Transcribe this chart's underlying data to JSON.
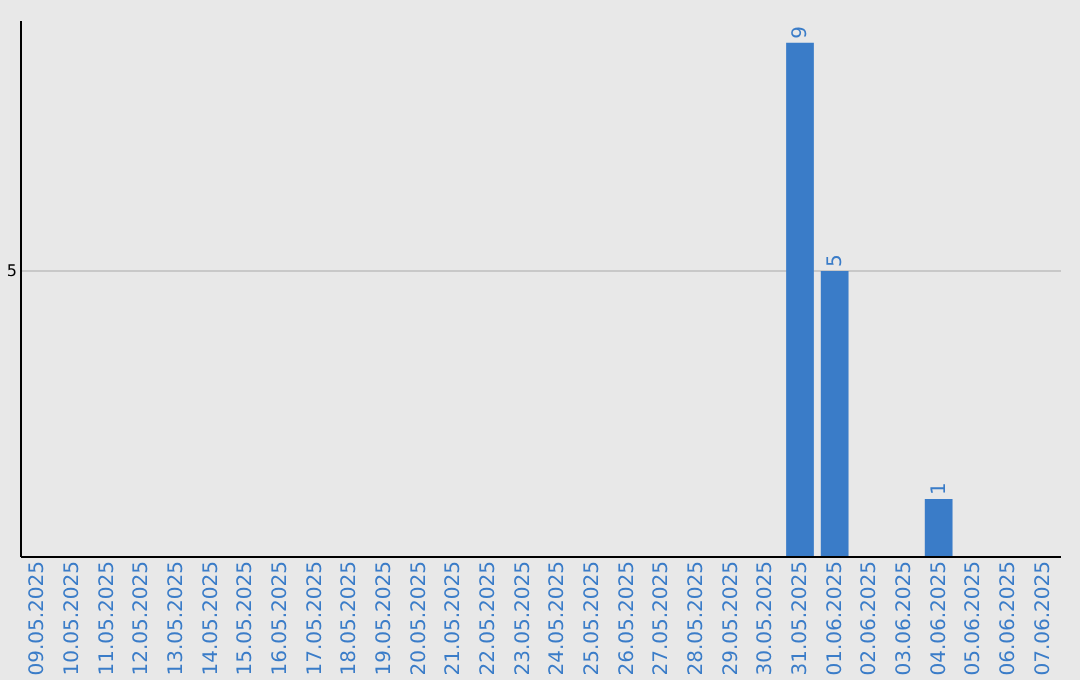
{
  "chart_data": {
    "type": "bar",
    "categories": [
      "09.05.2025",
      "10.05.2025",
      "11.05.2025",
      "12.05.2025",
      "13.05.2025",
      "14.05.2025",
      "15.05.2025",
      "16.05.2025",
      "17.05.2025",
      "18.05.2025",
      "19.05.2025",
      "20.05.2025",
      "21.05.2025",
      "22.05.2025",
      "23.05.2025",
      "24.05.2025",
      "25.05.2025",
      "26.05.2025",
      "27.05.2025",
      "28.05.2025",
      "29.05.2025",
      "30.05.2025",
      "31.05.2025",
      "01.06.2025",
      "02.06.2025",
      "03.06.2025",
      "04.06.2025",
      "05.06.2025",
      "06.06.2025",
      "07.06.2025"
    ],
    "values": [
      null,
      null,
      null,
      null,
      null,
      null,
      null,
      null,
      null,
      null,
      null,
      null,
      null,
      null,
      null,
      null,
      null,
      null,
      null,
      null,
      null,
      null,
      9,
      5,
      null,
      null,
      1,
      null,
      null,
      null
    ],
    "color": "#3a7cc8",
    "ylim": [
      0,
      9.4
    ],
    "yticks": [
      5
    ],
    "grid": "y",
    "data_labels": true
  }
}
